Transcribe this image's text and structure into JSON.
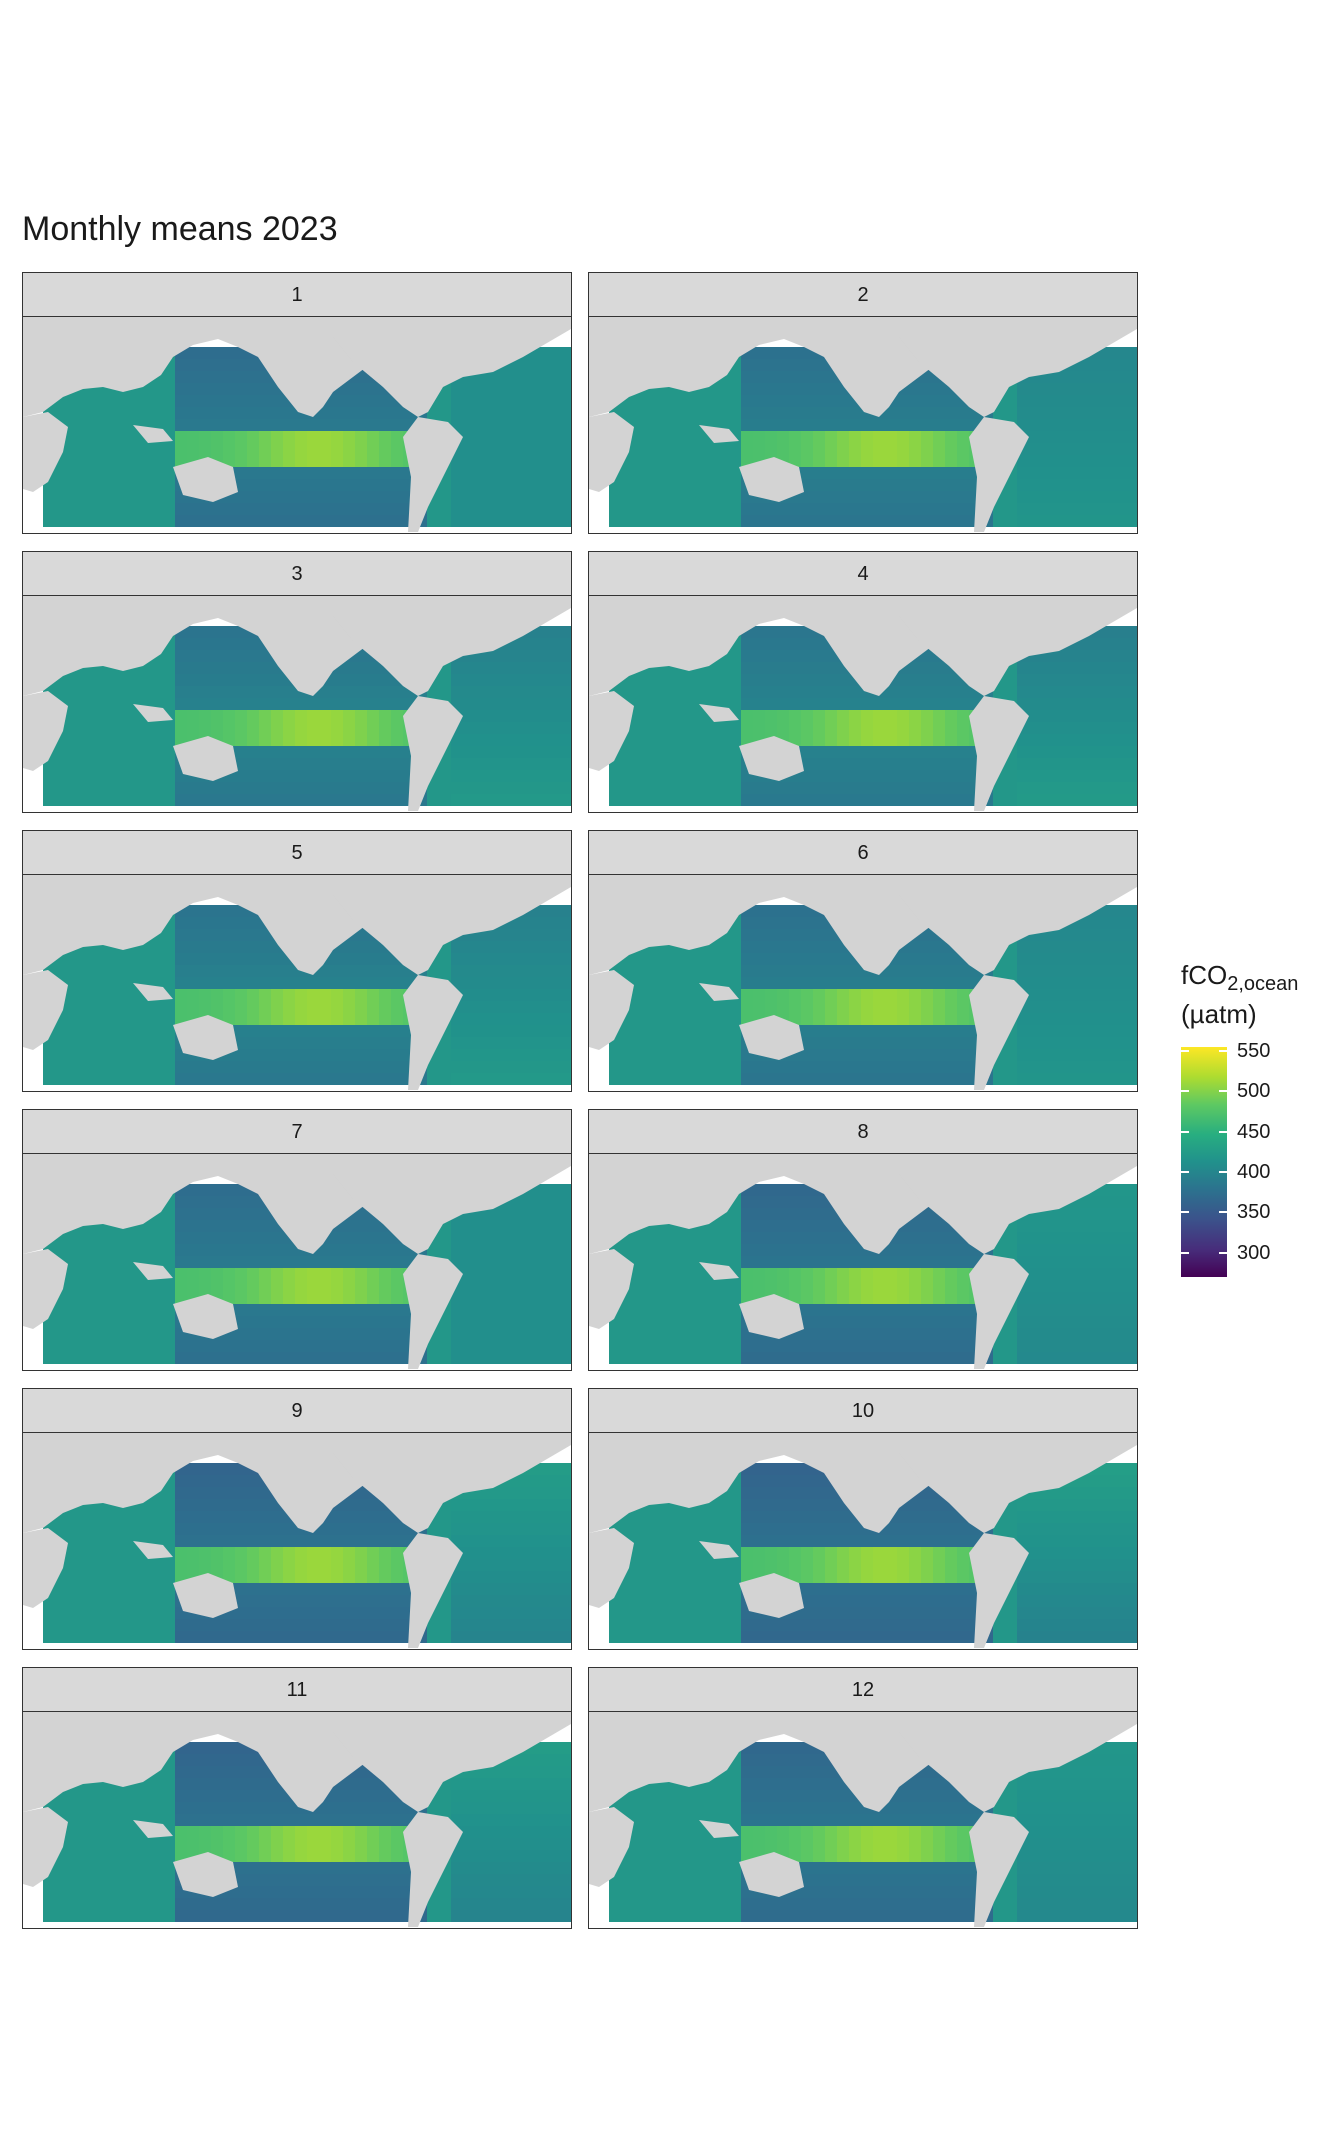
{
  "title": "Monthly means 2023",
  "panels": [
    "1",
    "2",
    "3",
    "4",
    "5",
    "6",
    "7",
    "8",
    "9",
    "10",
    "11",
    "12"
  ],
  "legend": {
    "title_main": "fCO",
    "title_sub": "2,ocean",
    "title_unit": "(µatm)",
    "ticks": [
      "550",
      "500",
      "450",
      "400",
      "350",
      "300"
    ],
    "tick_values": [
      550,
      500,
      450,
      400,
      350,
      300
    ],
    "range": [
      270,
      555
    ],
    "palette": "viridis"
  },
  "colors": {
    "land": "#d3d3d3",
    "ocean_base": "#2c728e",
    "equatorial_high": "#addc30",
    "strip_bg": "#d9d9d9"
  }
}
